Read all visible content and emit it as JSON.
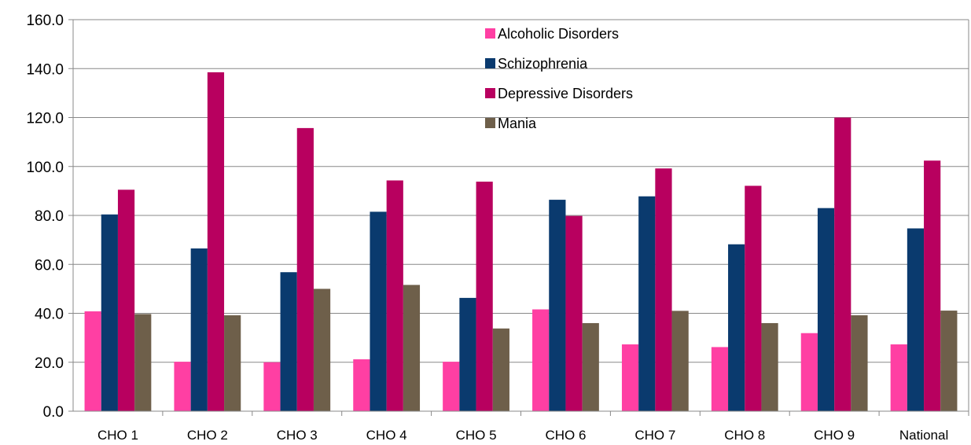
{
  "chart_data": {
    "type": "bar",
    "title": "",
    "xlabel": "",
    "ylabel": "",
    "ylim": [
      0,
      160
    ],
    "y_ticks": [
      "0.0",
      "20.0",
      "40.0",
      "60.0",
      "80.0",
      "100.0",
      "120.0",
      "140.0",
      "160.0"
    ],
    "grid": true,
    "legend_position": "top-center",
    "categories": [
      "CHO 1",
      "CHO 2",
      "CHO 3",
      "CHO 4",
      "CHO 5",
      "CHO 6",
      "CHO 7",
      "CHO 8",
      "CHO 9",
      "National"
    ],
    "series": [
      {
        "name": "Alcoholic Disorders",
        "color": "#ff3fa3",
        "values": [
          40.8,
          20.2,
          20.0,
          21.2,
          20.2,
          41.6,
          27.3,
          26.2,
          31.9,
          27.3
        ]
      },
      {
        "name": "Schizophrenia",
        "color": "#0a3a6e",
        "values": [
          80.4,
          66.5,
          56.8,
          81.5,
          46.3,
          86.4,
          87.8,
          68.2,
          83.0,
          74.7
        ]
      },
      {
        "name": "Depressive Disorders",
        "color": "#b8005f",
        "values": [
          90.5,
          138.5,
          115.7,
          94.3,
          93.8,
          79.8,
          99.2,
          92.1,
          120.0,
          102.4
        ]
      },
      {
        "name": "Mania",
        "color": "#6e5f4a",
        "values": [
          39.7,
          39.2,
          50.0,
          51.6,
          33.8,
          36.0,
          41.0,
          36.0,
          39.2,
          41.1
        ]
      }
    ]
  }
}
